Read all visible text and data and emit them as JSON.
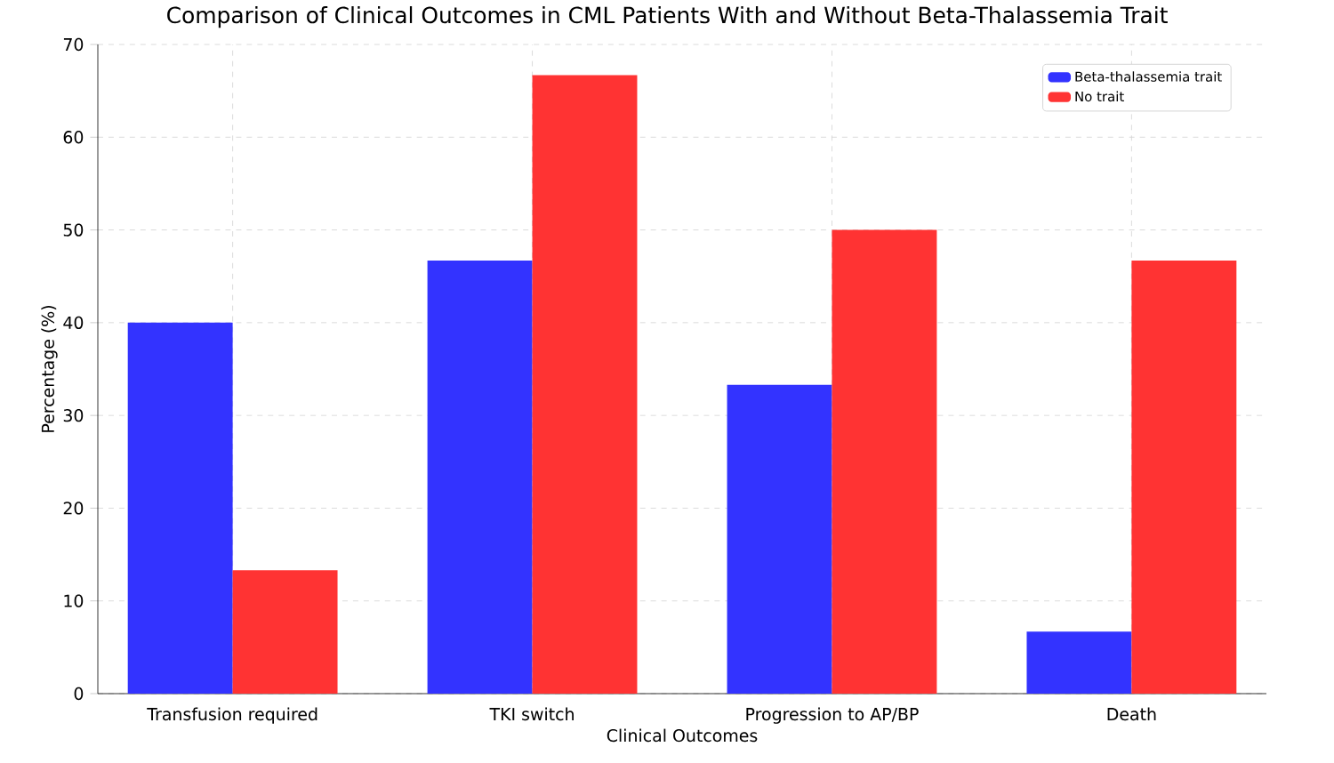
{
  "chart_data": {
    "type": "bar",
    "title": "Comparison of Clinical Outcomes in CML Patients With and Without Beta-Thalassemia Trait",
    "xlabel": "Clinical Outcomes",
    "ylabel": "Percentage (%)",
    "categories": [
      "Transfusion required",
      "TKI switch",
      "Progression to AP/BP",
      "Death"
    ],
    "series": [
      {
        "name": "Beta-thalassemia trait",
        "color": "#3333ff",
        "values": [
          40,
          46.7,
          33.3,
          6.7
        ]
      },
      {
        "name": "No trait",
        "color": "#ff3333",
        "values": [
          13.3,
          66.7,
          50,
          46.7
        ]
      }
    ],
    "ylim": [
      0,
      70
    ],
    "yticks": [
      0,
      10,
      20,
      30,
      40,
      50,
      60,
      70
    ],
    "grid": true,
    "legend": "top right"
  }
}
